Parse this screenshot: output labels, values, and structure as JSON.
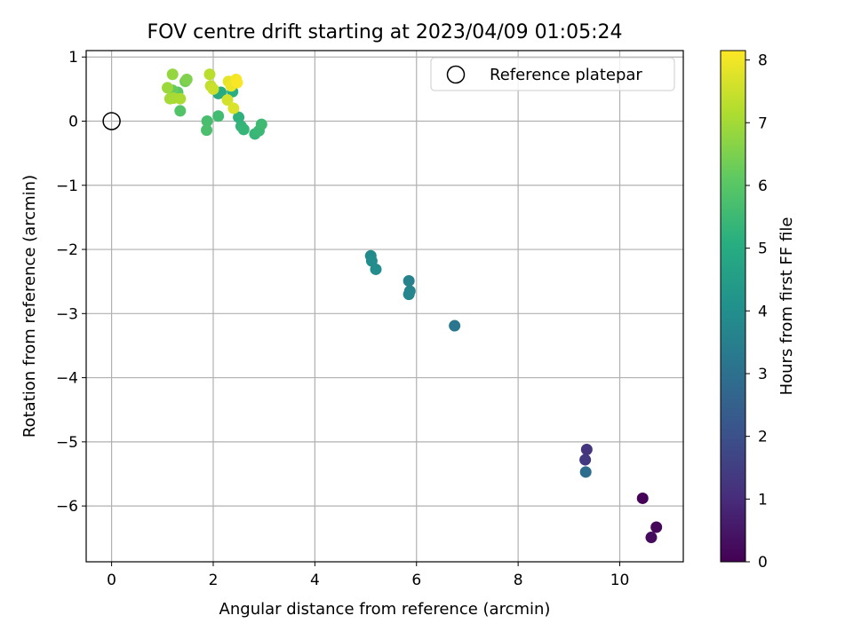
{
  "chart_data": {
    "type": "scatter",
    "title": "FOV centre drift starting at 2023/04/09 01:05:24",
    "xlabel": "Angular distance from reference (arcmin)",
    "ylabel": "Rotation from reference (arcmin)",
    "xlim": [
      -0.5,
      11.25
    ],
    "ylim": [
      -6.87,
      1.1
    ],
    "xticks": [
      0,
      2,
      4,
      6,
      8,
      10
    ],
    "yticks": [
      1,
      0,
      -1,
      -2,
      -3,
      -4,
      -5,
      -6
    ],
    "grid": true,
    "legend": {
      "position": "top-right",
      "entries": [
        "Reference platepar"
      ]
    },
    "reference_point": {
      "x": 0,
      "y": 0,
      "label": "Reference platepar"
    },
    "colorbar": {
      "label": "Hours from first FF file",
      "range": [
        0,
        8.15
      ],
      "ticks": [
        0,
        1,
        2,
        3,
        4,
        5,
        6,
        7,
        8
      ],
      "colormap": "viridis"
    },
    "series": [
      {
        "points": [
          {
            "x": 10.45,
            "y": -5.88,
            "c": 0.05
          },
          {
            "x": 10.72,
            "y": -6.33,
            "c": 0.15
          },
          {
            "x": 10.62,
            "y": -6.49,
            "c": 0.25
          },
          {
            "x": 9.35,
            "y": -5.12,
            "c": 1.2
          },
          {
            "x": 9.32,
            "y": -5.28,
            "c": 1.35
          },
          {
            "x": 9.33,
            "y": -5.47,
            "c": 2.9
          },
          {
            "x": 6.75,
            "y": -3.19,
            "c": 3.2
          },
          {
            "x": 5.85,
            "y": -2.49,
            "c": 3.6
          },
          {
            "x": 5.87,
            "y": -2.65,
            "c": 3.65
          },
          {
            "x": 5.85,
            "y": -2.7,
            "c": 3.7
          },
          {
            "x": 5.1,
            "y": -2.1,
            "c": 3.85
          },
          {
            "x": 5.12,
            "y": -2.18,
            "c": 3.9
          },
          {
            "x": 5.2,
            "y": -2.31,
            "c": 3.95
          },
          {
            "x": 2.1,
            "y": 0.43,
            "c": 4.9
          },
          {
            "x": 2.15,
            "y": 0.45,
            "c": 5.0
          },
          {
            "x": 2.38,
            "y": 0.46,
            "c": 5.1
          },
          {
            "x": 2.5,
            "y": 0.06,
            "c": 5.2
          },
          {
            "x": 2.55,
            "y": -0.08,
            "c": 5.3
          },
          {
            "x": 2.6,
            "y": -0.13,
            "c": 5.35
          },
          {
            "x": 2.82,
            "y": -0.2,
            "c": 5.4
          },
          {
            "x": 2.9,
            "y": -0.15,
            "c": 5.45
          },
          {
            "x": 2.95,
            "y": -0.05,
            "c": 5.55
          },
          {
            "x": 2.1,
            "y": 0.08,
            "c": 5.6
          },
          {
            "x": 1.88,
            "y": 0.0,
            "c": 5.7
          },
          {
            "x": 1.87,
            "y": -0.14,
            "c": 5.75
          },
          {
            "x": 1.35,
            "y": 0.16,
            "c": 5.9
          },
          {
            "x": 1.3,
            "y": 0.45,
            "c": 6.0
          },
          {
            "x": 1.2,
            "y": 0.48,
            "c": 6.2
          },
          {
            "x": 1.45,
            "y": 0.62,
            "c": 6.4
          },
          {
            "x": 1.48,
            "y": 0.65,
            "c": 6.55
          },
          {
            "x": 1.2,
            "y": 0.73,
            "c": 6.8
          },
          {
            "x": 1.1,
            "y": 0.52,
            "c": 6.9
          },
          {
            "x": 1.15,
            "y": 0.35,
            "c": 7.0
          },
          {
            "x": 1.22,
            "y": 0.36,
            "c": 7.05
          },
          {
            "x": 1.35,
            "y": 0.35,
            "c": 7.1
          },
          {
            "x": 1.93,
            "y": 0.73,
            "c": 7.3
          },
          {
            "x": 1.95,
            "y": 0.55,
            "c": 7.4
          },
          {
            "x": 2.0,
            "y": 0.5,
            "c": 7.5
          },
          {
            "x": 2.28,
            "y": 0.33,
            "c": 7.6
          },
          {
            "x": 2.4,
            "y": 0.2,
            "c": 7.7
          },
          {
            "x": 2.3,
            "y": 0.62,
            "c": 7.85
          },
          {
            "x": 2.35,
            "y": 0.55,
            "c": 7.95
          },
          {
            "x": 2.45,
            "y": 0.65,
            "c": 8.05
          },
          {
            "x": 2.47,
            "y": 0.6,
            "c": 8.1
          }
        ]
      }
    ]
  }
}
